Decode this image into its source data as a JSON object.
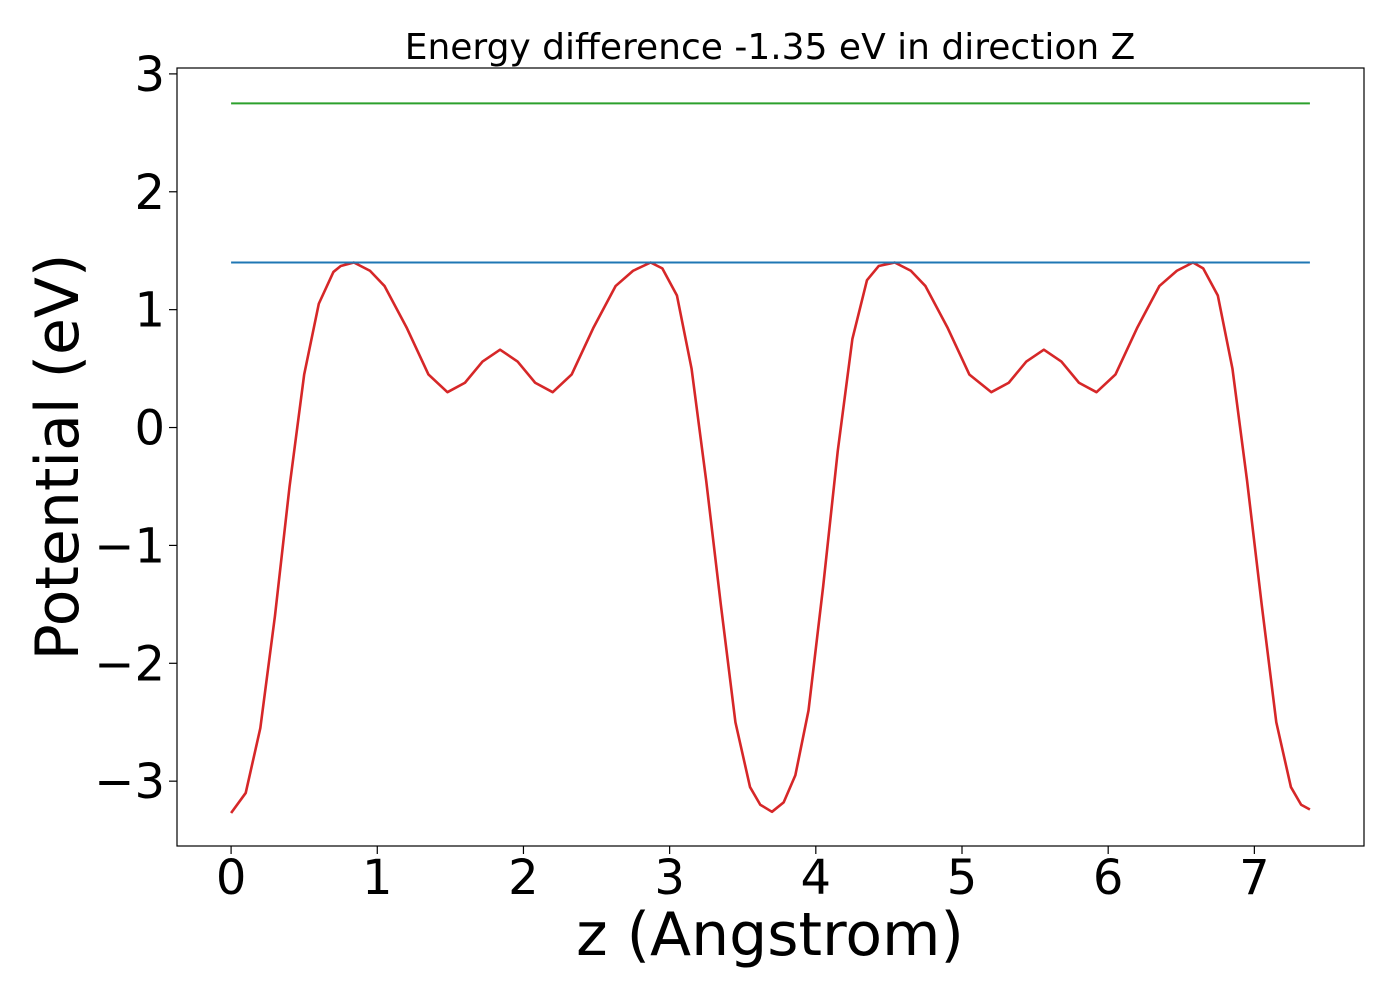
{
  "chart_data": {
    "type": "line",
    "title": "Energy difference -1.35 eV in direction Z",
    "xlabel": "z (Angstrom)",
    "ylabel": "Potential (eV)",
    "xlim": [
      -0.37,
      7.75
    ],
    "ylim": [
      -3.55,
      3.05
    ],
    "xticks": [
      0,
      1,
      2,
      3,
      4,
      5,
      6,
      7
    ],
    "xtick_labels": [
      "0",
      "1",
      "2",
      "3",
      "4",
      "5",
      "6",
      "7"
    ],
    "yticks": [
      3,
      2,
      1,
      0,
      -1,
      -2,
      -3
    ],
    "ytick_labels": [
      "3",
      "2",
      "1",
      "0",
      "−1",
      "−2",
      "−3"
    ],
    "grid": false,
    "series": [
      {
        "color": "#d62728",
        "x": [
          0,
          0.1,
          0.2,
          0.3,
          0.4,
          0.5,
          0.6,
          0.7,
          0.75,
          0.84,
          0.95,
          1.05,
          1.2,
          1.35,
          1.48,
          1.6,
          1.72,
          1.84,
          1.96,
          2.08,
          2.2,
          2.33,
          2.48,
          2.63,
          2.75,
          2.87,
          2.95,
          3.05,
          3.15,
          3.25,
          3.35,
          3.45,
          3.55,
          3.62,
          3.7,
          3.78,
          3.86,
          3.95,
          4.05,
          4.15,
          4.25,
          4.35,
          4.43,
          4.54,
          4.65,
          4.75,
          4.9,
          5.05,
          5.2,
          5.32,
          5.44,
          5.56,
          5.68,
          5.8,
          5.92,
          6.05,
          6.2,
          6.35,
          6.47,
          6.58,
          6.65,
          6.75,
          6.85,
          6.95,
          7.05,
          7.15,
          7.25,
          7.32,
          7.38
        ],
        "y": [
          -3.27,
          -3.1,
          -2.55,
          -1.6,
          -0.5,
          0.45,
          1.05,
          1.32,
          1.37,
          1.4,
          1.33,
          1.2,
          0.85,
          0.45,
          0.3,
          0.38,
          0.56,
          0.66,
          0.56,
          0.38,
          0.3,
          0.45,
          0.85,
          1.2,
          1.33,
          1.4,
          1.35,
          1.12,
          0.5,
          -0.45,
          -1.5,
          -2.5,
          -3.05,
          -3.2,
          -3.26,
          -3.18,
          -2.95,
          -2.4,
          -1.35,
          -0.2,
          0.75,
          1.25,
          1.37,
          1.4,
          1.33,
          1.2,
          0.85,
          0.45,
          0.3,
          0.38,
          0.56,
          0.66,
          0.56,
          0.38,
          0.3,
          0.45,
          0.85,
          1.2,
          1.33,
          1.4,
          1.35,
          1.12,
          0.5,
          -0.45,
          -1.5,
          -2.5,
          -3.05,
          -3.2,
          -3.24
        ]
      },
      {
        "color": "#1f77b4",
        "x": [
          0,
          7.38
        ],
        "y": [
          1.4,
          1.4
        ]
      },
      {
        "color": "#2ca02c",
        "x": [
          0,
          7.38
        ],
        "y": [
          2.75,
          2.75
        ]
      }
    ]
  }
}
